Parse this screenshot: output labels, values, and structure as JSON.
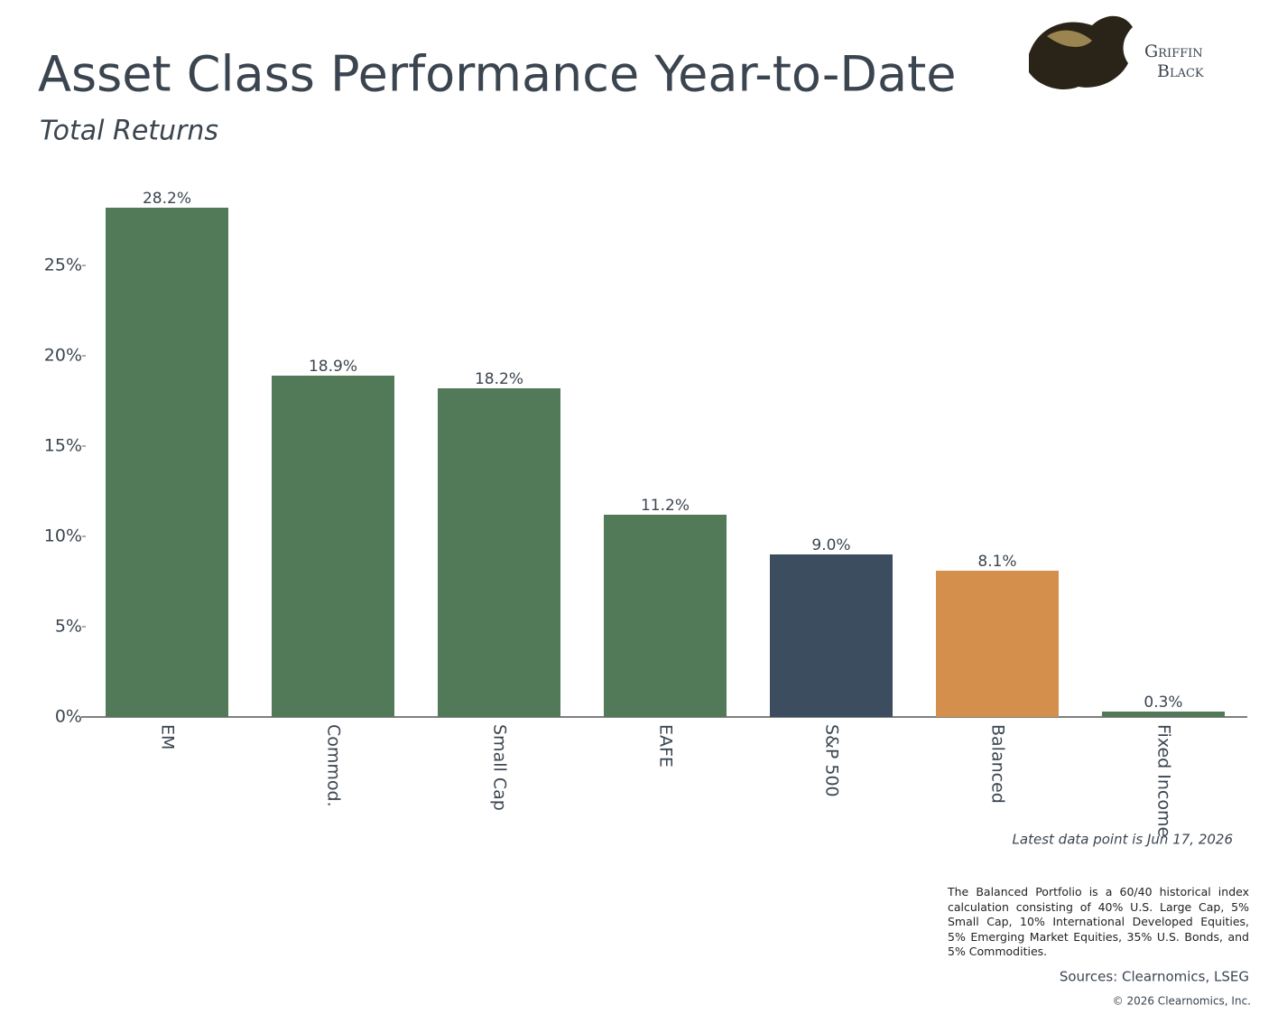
{
  "logo": {
    "line1": "Griffin",
    "line2": "Black"
  },
  "chart_data": {
    "type": "bar",
    "title": "Asset Class Performance Year-to-Date",
    "subtitle": "Total Returns",
    "categories": [
      "EM",
      "Commod.",
      "Small Cap",
      "EAFE",
      "S&P 500",
      "Balanced",
      "Fixed Income"
    ],
    "values": [
      28.2,
      18.9,
      18.2,
      11.2,
      9.0,
      8.1,
      0.3
    ],
    "value_labels": [
      "28.2%",
      "18.9%",
      "18.2%",
      "11.2%",
      "9.0%",
      "8.1%",
      "0.3%"
    ],
    "colors": [
      "#527a58",
      "#527a58",
      "#527a58",
      "#527a58",
      "#3b4d5e",
      "#d58f4c",
      "#527a58"
    ],
    "ylim": [
      0,
      29
    ],
    "yticks": [
      {
        "value": 0,
        "label": "0%"
      },
      {
        "value": 5,
        "label": "5%"
      },
      {
        "value": 10,
        "label": "10%"
      },
      {
        "value": 15,
        "label": "15%"
      },
      {
        "value": 20,
        "label": "20%"
      },
      {
        "value": 25,
        "label": "25%"
      }
    ],
    "grid": false,
    "annotation": "Latest data point is Jun 17, 2026",
    "footnote": "The Balanced Portfolio is a 60/40 historical index calculation consisting of 40% U.S. Large Cap, 5% Small Cap, 10% International Developed Equities, 5% Emerging Market Equities, 35% U.S. Bonds, and 5% Commodities.",
    "source": "Sources: Clearnomics, LSEG",
    "copyright": "© 2026 Clearnomics, Inc."
  }
}
